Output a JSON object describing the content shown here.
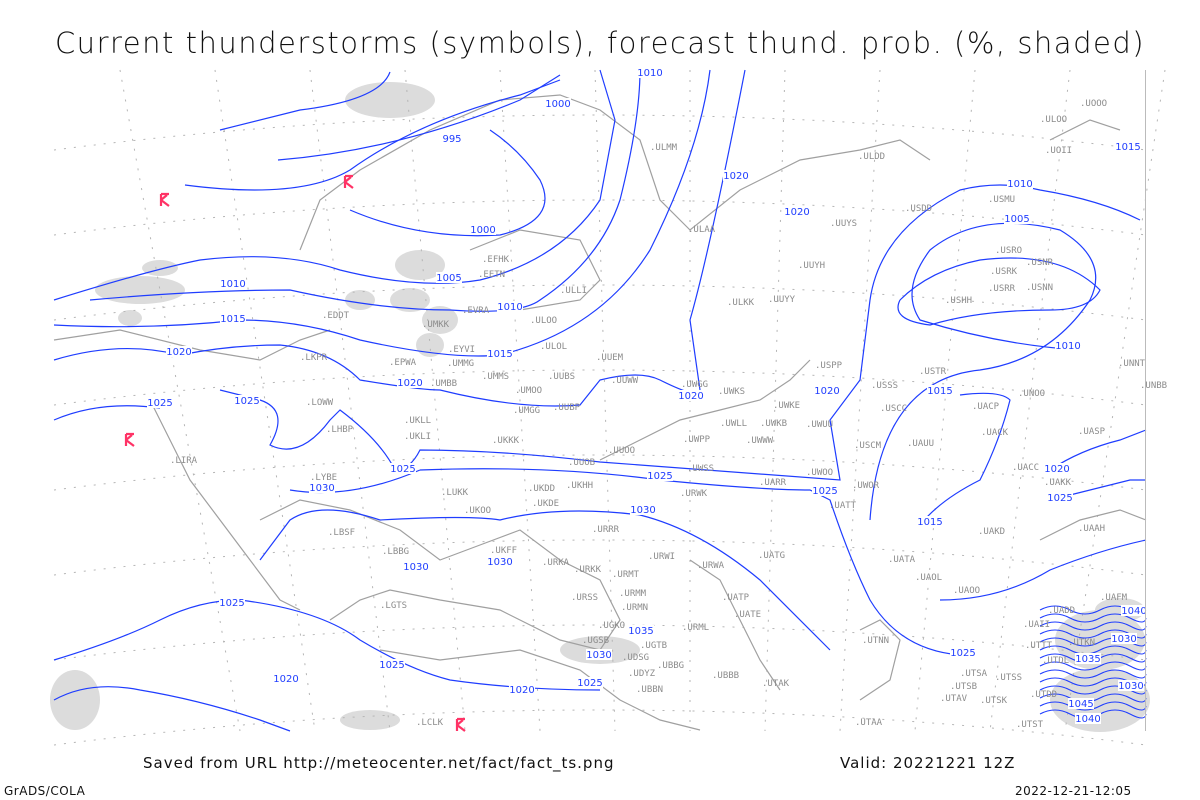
{
  "title": "Current thunderstorms (symbols), forecast thund. prob. (%, shaded)",
  "footer": {
    "saved_from": "Saved from URL http://meteocenter.net/fact/fact_ts.png",
    "valid": "Valid: 20221221 12Z",
    "software": "GrADS/COLA",
    "generated": "2022-12-21-12:05"
  },
  "colors": {
    "isobar": "#1f3dff",
    "coast": "#a0a0a0",
    "station": "#8c8c8c",
    "thunder_symbol": "#ff3366",
    "shading": "#dcdcdc"
  },
  "thunderstorm_symbol_icon": "thunderstorm-symbol",
  "stations": [
    "ULOO",
    "UOII",
    "ULDD",
    "USDD",
    "USMU",
    "UUYS",
    "USRO",
    "USNR",
    "USRK",
    "USRR",
    "USNN",
    "USHH",
    "UUYH",
    "UUYY",
    "ULKK",
    "ULAA",
    "ULMM",
    "EFHK",
    "EETN",
    "ULLI",
    "EVRA",
    "ULOO",
    "EDDT",
    "UMKK",
    "EYVI",
    "UMMG",
    "ULOL",
    "LKPR",
    "EPWA",
    "UUEM",
    "UUWW",
    "UWGG",
    "UWKS",
    "UMMS",
    "UMOO",
    "UUBS",
    "UMBB",
    "UMGG",
    "UUBP",
    "USPP",
    "USSS",
    "USTR",
    "UNOO",
    "UNNT",
    "UNBB",
    "UWKE",
    "UWLL",
    "UWKB",
    "UWUU",
    "UWWW",
    "UWPP",
    "USCC",
    "UACP",
    "UACK",
    "UASP",
    "UAUU",
    "USCM",
    "UUOO",
    "UUOB",
    "UWSS",
    "UWOO",
    "UWOR",
    "UARR",
    "UATT",
    "URWK",
    "UKKK",
    "UKLL",
    "UKLI",
    "LOWW",
    "LHBP",
    "LIRA",
    "LYBE",
    "LUKK",
    "UKHH",
    "UKDD",
    "UKOO",
    "UKDE",
    "UKFF",
    "URKA",
    "URKK",
    "URRR",
    "URWI",
    "URMT",
    "URMM",
    "URMN",
    "URSS",
    "UGKO",
    "UGSB",
    "UGTB",
    "UDSG",
    "UBBG",
    "UDYZ",
    "UBBN",
    "URML",
    "UBBB",
    "UTAK",
    "UATG",
    "URWA",
    "UATP",
    "UATE",
    "UAKK",
    "UACC",
    "UAKD",
    "UAAH",
    "UATA",
    "UAOL",
    "UAOO",
    "UAFM",
    "UADD",
    "UAII",
    "UTNN",
    "UTKN",
    "UTTT",
    "UTDL",
    "UTSA",
    "UTSB",
    "UTSS",
    "UTAV",
    "UTSK",
    "UTDD",
    "UTST",
    "UTAA",
    "LBSF",
    "LBBG",
    "LGTS",
    "LCLK",
    "UOOO"
  ],
  "isobar_labels": [
    "995",
    "1000",
    "1010",
    "1020",
    "1020",
    "1010",
    "1005",
    "1015",
    "1000",
    "1005",
    "1010",
    "1010",
    "1015",
    "1015",
    "1020",
    "1020",
    "1020",
    "1025",
    "1025",
    "1015",
    "1020",
    "1010",
    "1025",
    "1025",
    "1025",
    "1030",
    "1030",
    "1015",
    "1020",
    "1025",
    "1030",
    "1030",
    "1025",
    "1025",
    "1020",
    "1020",
    "1025",
    "1035",
    "1030",
    "1035",
    "1025",
    "1030",
    "1045",
    "1040",
    "1030",
    "1040"
  ]
}
